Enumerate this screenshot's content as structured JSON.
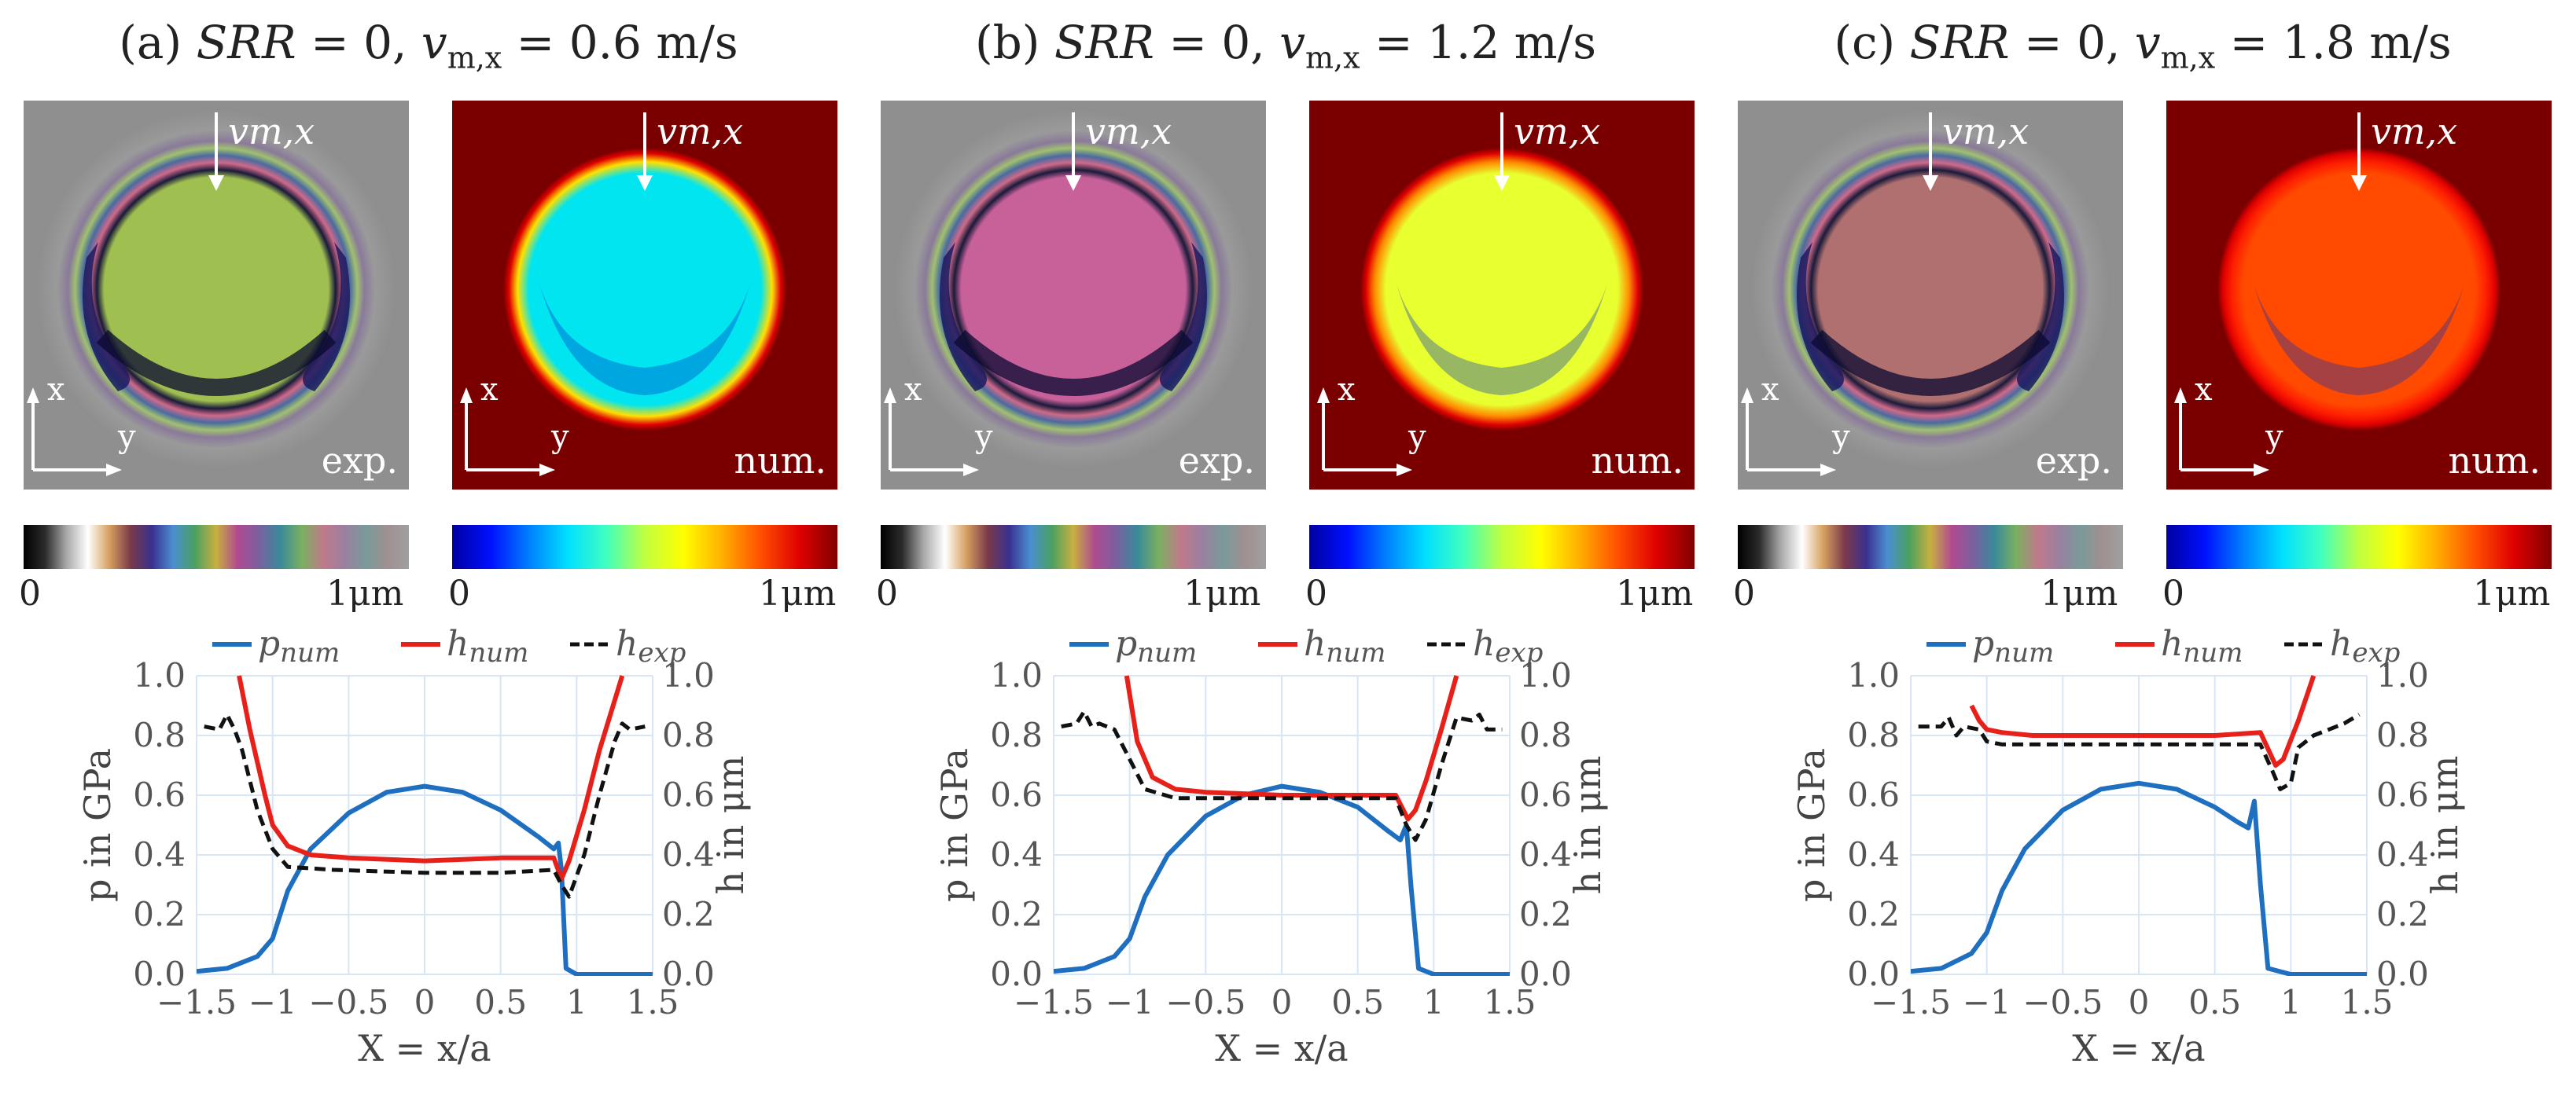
{
  "panels": [
    {
      "title": "(a) SRR = 0, vm,x = 0.6 m/s",
      "title_parts": {
        "prefix": "(a) ",
        "srr": "SRR",
        "eq1": " = 0, ",
        "v": "v",
        "sub": "m,x",
        "eq2": " = 0.6 m/s"
      },
      "exp_label": "exp.",
      "num_label": "num.",
      "arrow_label": "vm,x",
      "axis_x": "x",
      "axis_y": "y",
      "cbar_min": "0",
      "cbar_max": "1μm",
      "num_fill": "#00e5f0",
      "num_ring": "#ffe000",
      "exp_tint": "#9fbf50"
    },
    {
      "title": "(b) SRR = 0, vm,x = 1.2 m/s",
      "title_parts": {
        "prefix": "(b) ",
        "srr": "SRR",
        "eq1": " = 0, ",
        "v": "v",
        "sub": "m,x",
        "eq2": " = 1.2 m/s"
      },
      "exp_label": "exp.",
      "num_label": "num.",
      "arrow_label": "vm,x",
      "axis_x": "x",
      "axis_y": "y",
      "cbar_min": "0",
      "cbar_max": "1μm",
      "num_fill": "#e8ff30",
      "num_ring": "#ff8a00",
      "exp_tint": "#c8609a"
    },
    {
      "title": "(c) SRR = 0, vm,x = 1.8 m/s",
      "title_parts": {
        "prefix": "(c) ",
        "srr": "SRR",
        "eq1": " = 0, ",
        "v": "v",
        "sub": "m,x",
        "eq2": " = 1.8 m/s"
      },
      "exp_label": "exp.",
      "num_label": "num.",
      "arrow_label": "vm,x",
      "axis_x": "x",
      "axis_y": "y",
      "cbar_min": "0",
      "cbar_max": "1μm",
      "num_fill": "#ff4a00",
      "num_ring": "#ff2000",
      "exp_tint": "#b07070"
    }
  ],
  "colors": {
    "p_num": "#1f6fc0",
    "h_num": "#e8201a",
    "h_exp": "#111111",
    "grid": "#d6e6f5"
  },
  "chart_data": [
    {
      "type": "line",
      "title": "(a) SRR = 0, vm,x = 0.6 m/s",
      "xlabel": "X = x/a",
      "ylabel_left": "p in GPa",
      "ylabel_right": "h in μm",
      "xlim": [
        -1.5,
        1.5
      ],
      "ylim_left": [
        0.0,
        1.0
      ],
      "ylim_right": [
        0.0,
        1.0
      ],
      "x_ticks": [
        "-1.5",
        "-1",
        "-0.5",
        "0",
        "0.5",
        "1",
        "1.5"
      ],
      "y_ticks": [
        "0.0",
        "0.2",
        "0.4",
        "0.6",
        "0.8",
        "1.0"
      ],
      "legend": [
        "pnum",
        "hnum",
        "hexp"
      ],
      "series": [
        {
          "name": "p_num",
          "x": [
            -1.5,
            -1.3,
            -1.1,
            -1.0,
            -0.9,
            -0.75,
            -0.5,
            -0.25,
            0,
            0.25,
            0.5,
            0.75,
            0.85,
            0.88,
            0.9,
            0.93,
            1.0,
            1.5
          ],
          "y": [
            0.01,
            0.02,
            0.06,
            0.12,
            0.28,
            0.42,
            0.54,
            0.61,
            0.63,
            0.61,
            0.55,
            0.46,
            0.42,
            0.44,
            0.35,
            0.02,
            0.0,
            0.0
          ]
        },
        {
          "name": "h_num",
          "x": [
            -1.22,
            -1.15,
            -1.05,
            -1.0,
            -0.9,
            -0.75,
            -0.5,
            0,
            0.5,
            0.85,
            0.9,
            0.95,
            1.05,
            1.15,
            1.3
          ],
          "y": [
            1.0,
            0.82,
            0.6,
            0.5,
            0.43,
            0.4,
            0.39,
            0.38,
            0.39,
            0.39,
            0.32,
            0.38,
            0.55,
            0.75,
            1.0
          ]
        },
        {
          "name": "h_exp",
          "x": [
            -1.45,
            -1.35,
            -1.3,
            -1.25,
            -1.2,
            -1.1,
            -1.0,
            -0.9,
            -0.6,
            0,
            0.5,
            0.85,
            0.9,
            0.95,
            1.05,
            1.15,
            1.25,
            1.3,
            1.35,
            1.45
          ],
          "y": [
            0.83,
            0.82,
            0.87,
            0.82,
            0.75,
            0.55,
            0.42,
            0.36,
            0.35,
            0.34,
            0.34,
            0.35,
            0.3,
            0.26,
            0.4,
            0.6,
            0.78,
            0.84,
            0.82,
            0.83
          ]
        }
      ]
    },
    {
      "type": "line",
      "title": "(b) SRR = 0, vm,x = 1.2 m/s",
      "xlabel": "X = x/a",
      "ylabel_left": "p in GPa",
      "ylabel_right": "h in μm",
      "xlim": [
        -1.5,
        1.5
      ],
      "ylim_left": [
        0.0,
        1.0
      ],
      "ylim_right": [
        0.0,
        1.0
      ],
      "x_ticks": [
        "-1.5",
        "-1",
        "-0.5",
        "0",
        "0.5",
        "1",
        "1.5"
      ],
      "y_ticks": [
        "0.0",
        "0.2",
        "0.4",
        "0.6",
        "0.8",
        "1.0"
      ],
      "legend": [
        "pnum",
        "hnum",
        "hexp"
      ],
      "series": [
        {
          "name": "p_num",
          "x": [
            -1.5,
            -1.3,
            -1.1,
            -1.0,
            -0.9,
            -0.75,
            -0.5,
            -0.25,
            0,
            0.25,
            0.5,
            0.7,
            0.78,
            0.82,
            0.85,
            0.9,
            1.0,
            1.5
          ],
          "y": [
            0.01,
            0.02,
            0.06,
            0.12,
            0.26,
            0.4,
            0.53,
            0.6,
            0.63,
            0.61,
            0.56,
            0.48,
            0.45,
            0.5,
            0.3,
            0.02,
            0.0,
            0.0
          ]
        },
        {
          "name": "h_num",
          "x": [
            -1.02,
            -0.95,
            -0.85,
            -0.7,
            -0.5,
            0,
            0.5,
            0.75,
            0.83,
            0.88,
            0.95,
            1.05,
            1.15
          ],
          "y": [
            1.0,
            0.78,
            0.66,
            0.62,
            0.61,
            0.6,
            0.6,
            0.6,
            0.52,
            0.55,
            0.65,
            0.82,
            1.0
          ]
        },
        {
          "name": "h_exp",
          "x": [
            -1.45,
            -1.35,
            -1.3,
            -1.25,
            -1.2,
            -1.1,
            -1.0,
            -0.9,
            -0.7,
            0,
            0.5,
            0.75,
            0.82,
            0.88,
            0.95,
            1.05,
            1.15,
            1.25,
            1.3,
            1.35,
            1.45
          ],
          "y": [
            0.83,
            0.84,
            0.88,
            0.83,
            0.84,
            0.82,
            0.72,
            0.62,
            0.59,
            0.59,
            0.59,
            0.59,
            0.5,
            0.45,
            0.52,
            0.7,
            0.86,
            0.85,
            0.87,
            0.82,
            0.82
          ]
        }
      ]
    },
    {
      "type": "line",
      "title": "(c) SRR = 0, vm,x = 1.8 m/s",
      "xlabel": "X = x/a",
      "ylabel_left": "p in GPa",
      "ylabel_right": "h in μm",
      "xlim": [
        -1.5,
        1.5
      ],
      "ylim_left": [
        0.0,
        1.0
      ],
      "ylim_right": [
        0.0,
        1.0
      ],
      "x_ticks": [
        "-1.5",
        "-1",
        "-0.5",
        "0",
        "0.5",
        "1",
        "1.5"
      ],
      "y_ticks": [
        "0.0",
        "0.2",
        "0.4",
        "0.6",
        "0.8",
        "1.0"
      ],
      "legend": [
        "pnum",
        "hnum",
        "hexp"
      ],
      "series": [
        {
          "name": "p_num",
          "x": [
            -1.5,
            -1.3,
            -1.1,
            -1.0,
            -0.9,
            -0.75,
            -0.5,
            -0.25,
            0,
            0.25,
            0.5,
            0.65,
            0.72,
            0.76,
            0.8,
            0.85,
            1.0,
            1.5
          ],
          "y": [
            0.01,
            0.02,
            0.07,
            0.14,
            0.28,
            0.42,
            0.55,
            0.62,
            0.64,
            0.62,
            0.56,
            0.51,
            0.49,
            0.58,
            0.3,
            0.02,
            0.0,
            0.0
          ]
        },
        {
          "name": "h_num",
          "x": [
            -1.1,
            -1.05,
            -1.0,
            -0.9,
            -0.7,
            -0.5,
            0,
            0.5,
            0.8,
            0.9,
            0.95,
            1.05,
            1.15
          ],
          "y": [
            0.9,
            0.85,
            0.82,
            0.81,
            0.8,
            0.8,
            0.8,
            0.8,
            0.81,
            0.7,
            0.72,
            0.85,
            1.0
          ]
        },
        {
          "name": "h_exp",
          "x": [
            -1.45,
            -1.3,
            -1.25,
            -1.2,
            -1.15,
            -1.05,
            -1.0,
            -0.9,
            -0.5,
            0,
            0.5,
            0.8,
            0.88,
            0.93,
            1.0,
            1.05,
            1.15,
            1.25,
            1.35,
            1.45
          ],
          "y": [
            0.83,
            0.83,
            0.86,
            0.8,
            0.83,
            0.82,
            0.78,
            0.77,
            0.77,
            0.77,
            0.77,
            0.77,
            0.68,
            0.62,
            0.64,
            0.76,
            0.8,
            0.82,
            0.84,
            0.87
          ]
        }
      ]
    }
  ]
}
